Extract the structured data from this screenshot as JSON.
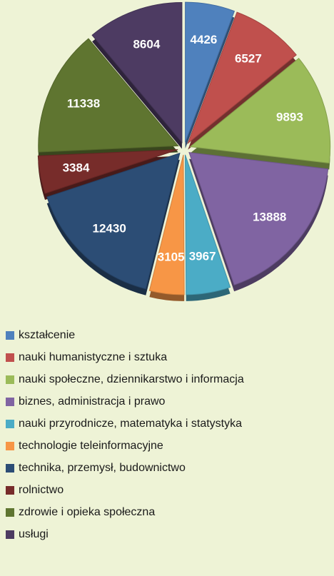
{
  "chart_data": {
    "type": "pie",
    "categories": [
      "kształcenie",
      "nauki humanistyczne i sztuka",
      "nauki społeczne, dziennikarstwo i informacja",
      "biznes, administracja i prawo",
      "nauki przyrodnicze, matematyka i statystyka",
      "technologie teleinformacyjne",
      "technika, przemysł, budownictwo",
      "rolnictwo",
      "zdrowie i opieka społeczna",
      "usługi"
    ],
    "values": [
      4426,
      6527,
      9893,
      13888,
      3967,
      3105,
      12430,
      3384,
      11338,
      8604
    ],
    "colors": [
      "#4f81bd",
      "#c0504d",
      "#9bbb59",
      "#8064a2",
      "#4bacc6",
      "#f79646",
      "#2c4d75",
      "#772c2a",
      "#5f7530",
      "#4d3b62"
    ],
    "legend": "bottom"
  }
}
